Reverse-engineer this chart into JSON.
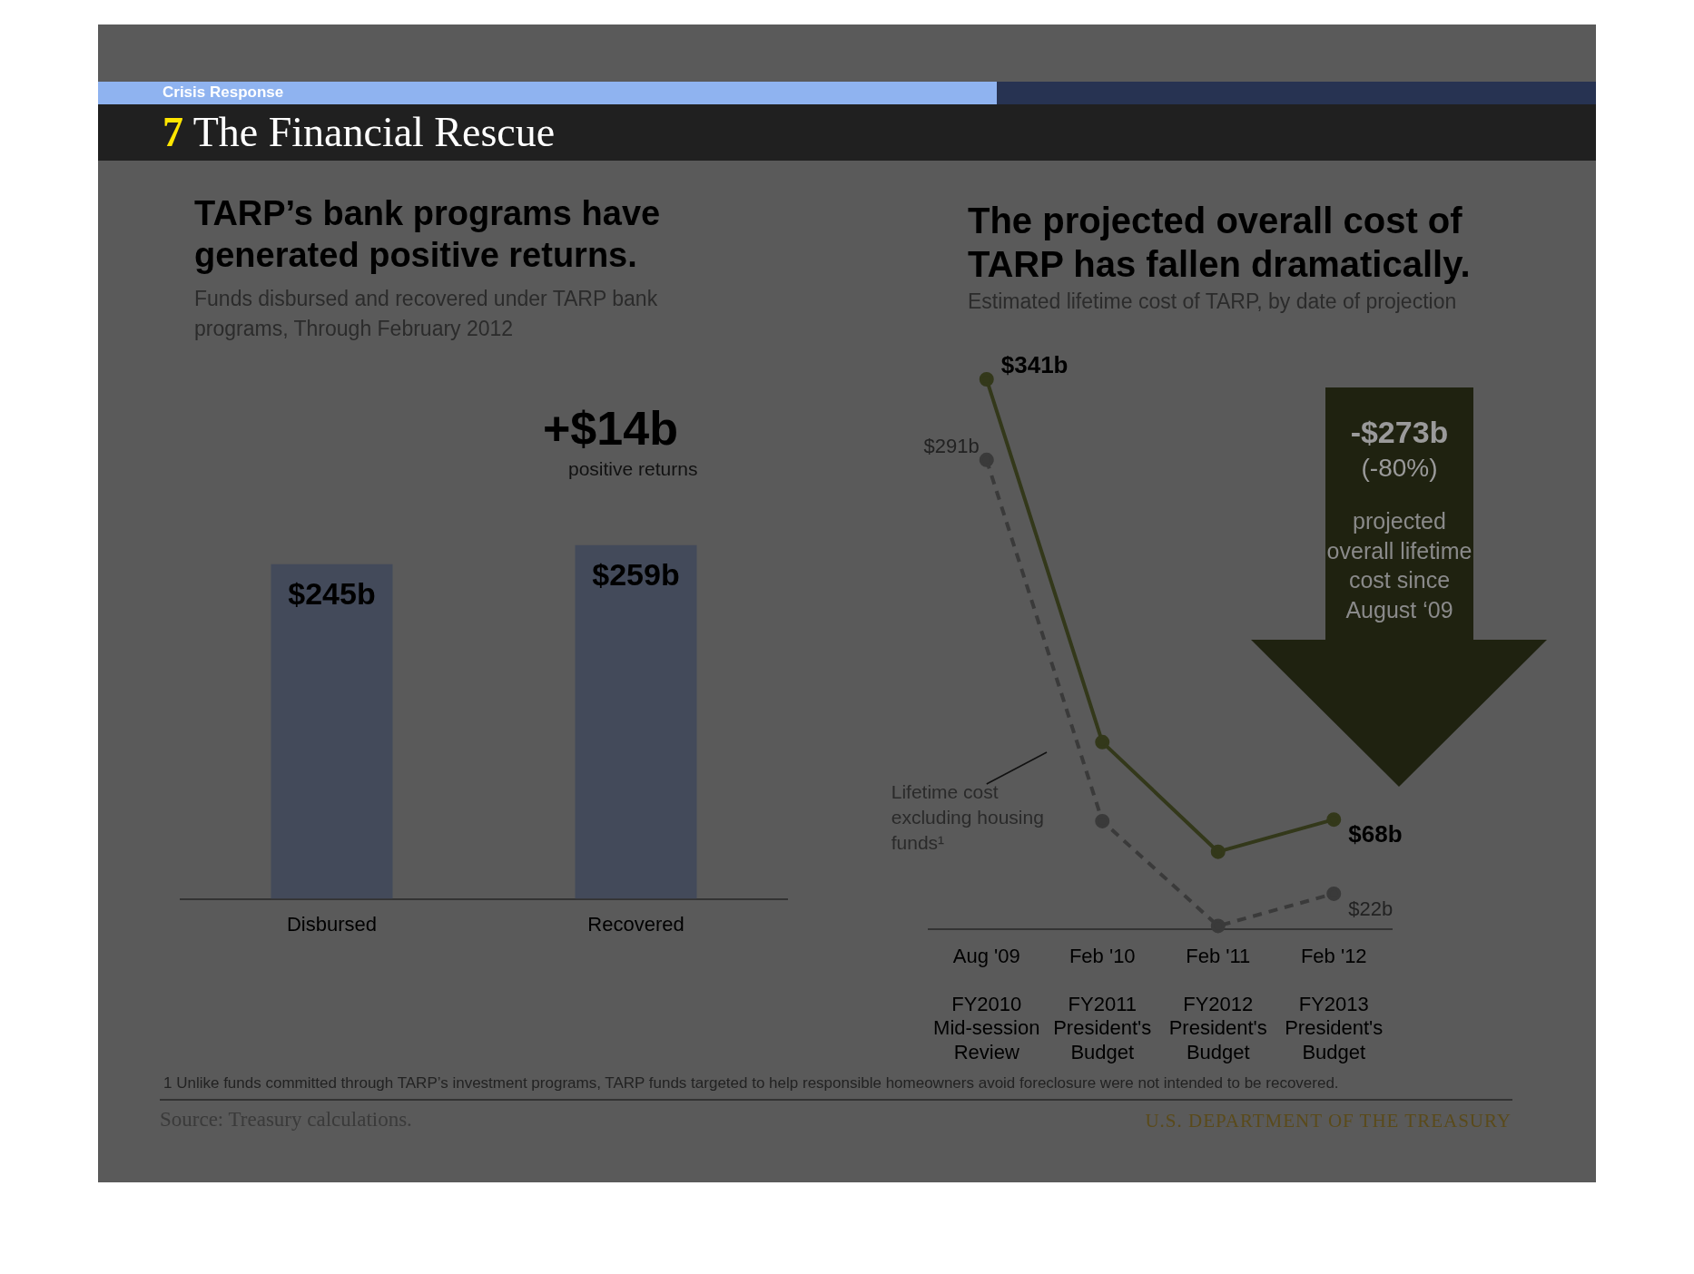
{
  "chart_data": [
    {
      "type": "bar",
      "title": "TARP’s bank programs have generated positive returns.",
      "subtitle": "Funds disbursed and recovered under TARP bank programs, Through February 2012",
      "categories": [
        "Disbursed",
        "Recovered"
      ],
      "values": [
        245,
        259
      ],
      "value_labels": [
        "$245b",
        "$259b"
      ],
      "color": "#434a5a",
      "annotations": [
        "Crisis Response",
        "7 The Financial Rescue",
        "+$14b",
        "positive returns"
      ]
    },
    {
      "type": "line",
      "title": "The projected overall cost of TARP has fallen dramatically.",
      "subtitle": "Estimated lifetime cost of TARP, by date of projection",
      "categories": [
        "Aug '09\nFY2010 Mid-session Review",
        "Feb '10\nFY2011 President's Budget",
        "Feb '11\nFY2012 President's Budget",
        "Feb '12\nFY2013 President's Budget"
      ],
      "series": [
        {
          "color": "#33381a",
          "values": [
            341,
            116,
            48,
            68
          ],
          "value_labels": [
            "$341b",
            null,
            null,
            "$68b"
          ],
          "line_style": "solid"
        },
        {
          "name": "Lifetime cost excluding housing funds¹",
          "color": "#3a3a3a",
          "values": [
            291,
            67,
            2,
            22
          ],
          "value_labels": [
            "$291b",
            null,
            null,
            "$22b"
          ],
          "line_style": "dashed"
        }
      ],
      "marker": "circle",
      "annotations": [
        "-$273b",
        "(-80%)",
        "projected overall lifetime cost since August ‘09",
        "1 Unlike funds committed through TARP’s investment programs, TARP funds targeted to help responsible homeowners avoid foreclosure were not intended to be recovered.",
        "Source: Treasury calculations.",
        "U.S. DEPARTMENT OF THE TREASURY"
      ]
    }
  ]
}
